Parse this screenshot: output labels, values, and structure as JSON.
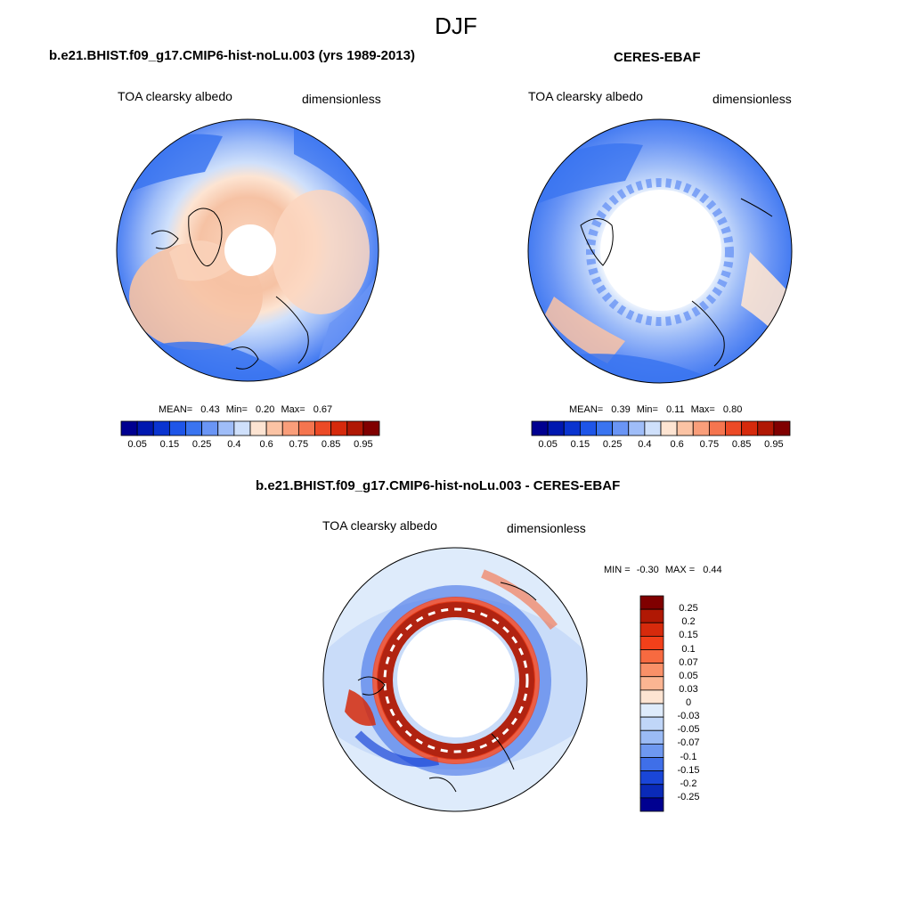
{
  "title": "DJF",
  "variable": "TOA clearsky albedo",
  "units": "dimensionless",
  "panels": {
    "model": {
      "title": "b.e21.BHIST.f09_g17.CMIP6-hist-noLu.003 (yrs 1989-2013)",
      "variable": "TOA clearsky albedo",
      "units": "dimensionless",
      "stats": {
        "mean_label": "MEAN=",
        "mean": "0.43",
        "min_label": "Min=",
        "min": "0.20",
        "max_label": "Max=",
        "max": "0.67"
      }
    },
    "obs": {
      "title": "CERES-EBAF",
      "variable": "TOA clearsky albedo",
      "units": "dimensionless",
      "stats": {
        "mean_label": "MEAN=",
        "mean": "0.39",
        "min_label": "Min=",
        "min": "0.11",
        "max_label": "Max=",
        "max": "0.80"
      }
    },
    "diff": {
      "title": "b.e21.BHIST.f09_g17.CMIP6-hist-noLu.003 - CERES-EBAF",
      "variable": "TOA clearsky albedo",
      "units": "dimensionless",
      "stats": {
        "min_label": "MIN =",
        "min": "-0.30",
        "max_label": "MAX =",
        "max": "0.44"
      }
    }
  },
  "colorbar_main": {
    "labels": [
      "0.05",
      "0.15",
      "0.25",
      "0.4",
      "0.6",
      "0.75",
      "0.85",
      "0.95"
    ],
    "colors": [
      "#000090",
      "#0018b0",
      "#0a34d0",
      "#1e55e8",
      "#3a74f0",
      "#6a95f5",
      "#9fbdf8",
      "#cfe0fb",
      "#fde4d2",
      "#fbc3a4",
      "#f99e7a",
      "#f5754f",
      "#ec4a26",
      "#d62a0c",
      "#b01804",
      "#800000"
    ]
  },
  "colorbar_diff": {
    "labels": [
      "0.25",
      "0.2",
      "0.15",
      "0.1",
      "0.07",
      "0.05",
      "0.03",
      "0",
      "-0.03",
      "-0.05",
      "-0.07",
      "-0.1",
      "-0.15",
      "-0.2",
      "-0.25"
    ],
    "colors": [
      "#800000",
      "#b01804",
      "#d62a0c",
      "#f2401a",
      "#f76a40",
      "#f99068",
      "#fbb592",
      "#fde4d2",
      "#deebfb",
      "#c0d6f8",
      "#9bbbf5",
      "#6e98f0",
      "#3f6fe8",
      "#1a46d8",
      "#0a2ab8",
      "#000090"
    ]
  }
}
